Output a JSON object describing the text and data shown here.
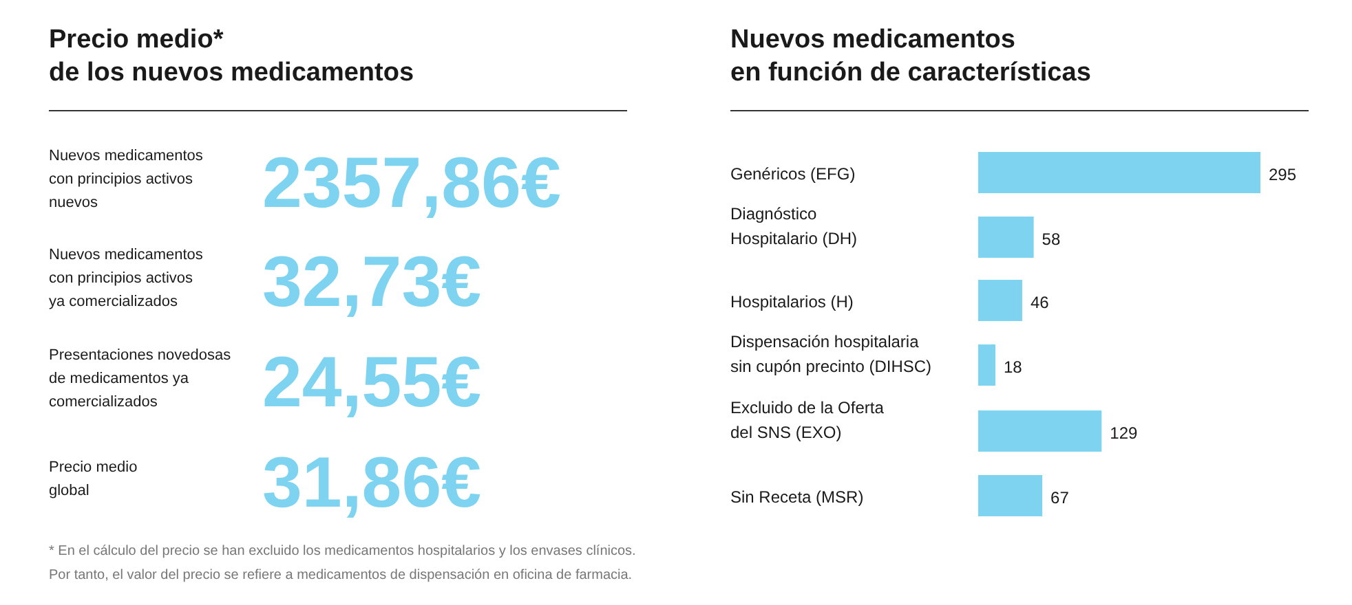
{
  "chart_data": [
    {
      "type": "other",
      "title": "Precio medio*\nde los nuevos medicamentos",
      "categories": [
        "Nuevos medicamentos\ncon principios activos\nnuevos",
        "Nuevos medicamentos\ncon principios activos\nya comercializados",
        "Presentaciones novedosas\nde medicamentos ya\ncomercializados",
        "Precio medio\nglobal"
      ],
      "value_labels": [
        "2357,86€",
        "32,73€",
        "24,55€",
        "31,86€"
      ],
      "annotations": [
        "* En el cálculo del precio se han excluido los medicamentos hospitalarios y los envases clínicos.\nPor tanto, el valor del precio se refiere a medicamentos de dispensación en oficina de farmacia."
      ]
    },
    {
      "type": "bar",
      "orientation": "horizontal",
      "title": "Nuevos medicamentos\nen función de características",
      "categories": [
        "Genéricos (EFG)",
        "Diagnóstico\nHospitalario (DH)",
        "Hospitalarios (H)",
        "Dispensación hospitalaria\nsin cupón precinto (DIHSC)",
        "Excluido de la Oferta\ndel SNS (EXO)",
        "Sin Receta (MSR)"
      ],
      "values": [
        295,
        58,
        46,
        18,
        129,
        67
      ],
      "color": "#7dd3f0",
      "data_labels": true
    }
  ]
}
